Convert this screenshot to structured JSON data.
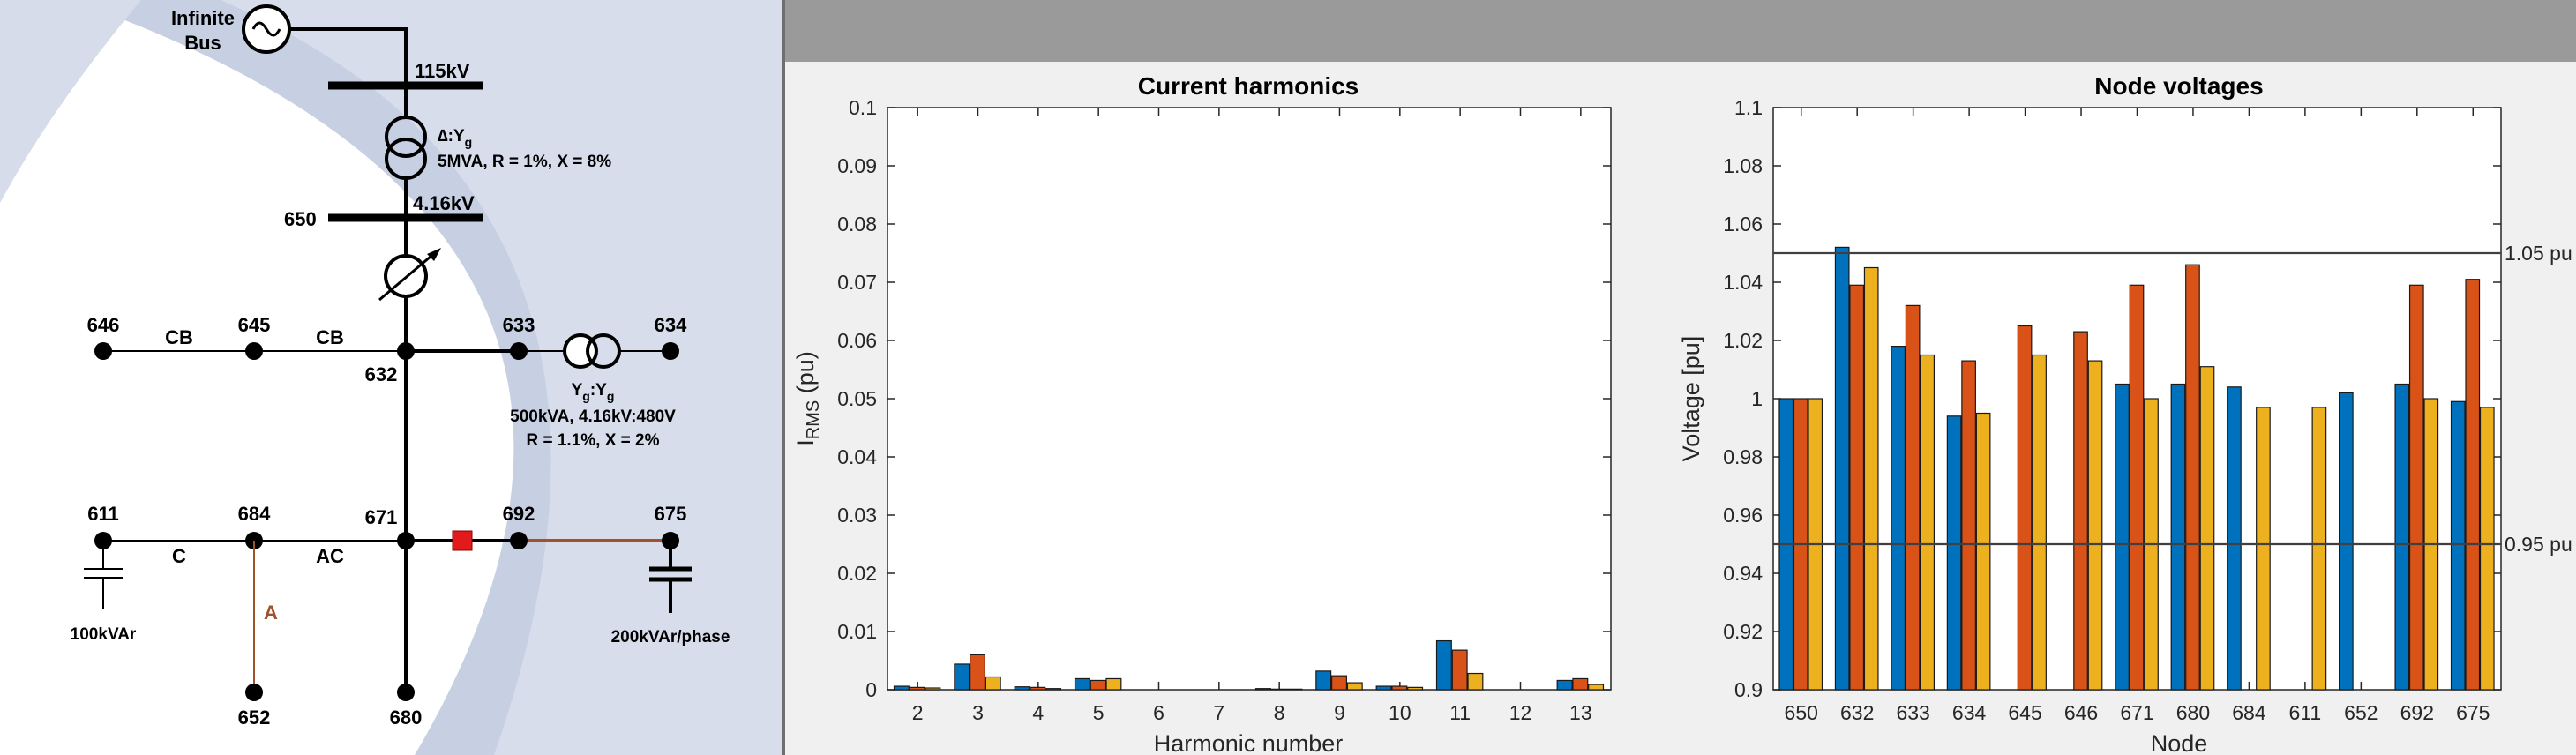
{
  "diagram": {
    "infinite_bus_label_1": "Infinite",
    "infinite_bus_label_2": "Bus",
    "bus_115kv": "115kV",
    "transformer1_conn": "∆:Y",
    "transformer1_sub": "g",
    "transformer1_rating": "5MVA, R = 1%, X = 8%",
    "bus_650": "650",
    "bus_4_16kv": "4.16kV",
    "node_646": "646",
    "node_645": "645",
    "node_632": "632",
    "node_633": "633",
    "node_634": "634",
    "line_cb_1": "CB",
    "line_cb_2": "CB",
    "xfmr2_conn_a": "Y",
    "xfmr2_conn_sub_a": "g",
    "xfmr2_conn_colon": ":Y",
    "xfmr2_conn_sub_b": "g",
    "xfmr2_rating_1": "500kVA, 4.16kV:480V",
    "xfmr2_rating_2": "R = 1.1%, X = 2%",
    "node_611": "611",
    "node_684": "684",
    "node_671": "671",
    "node_692": "692",
    "node_675": "675",
    "line_c": "C",
    "line_ac": "AC",
    "line_a": "A",
    "cap_611": "100kVAr",
    "cap_675": "200kVAr/phase",
    "node_652": "652",
    "node_680": "680",
    "colors": {
      "phase_a_line": "#a0522d",
      "switch": "#e31a1c"
    }
  },
  "chart_data": [
    {
      "type": "bar",
      "title": "Current harmonics",
      "xlabel": "Harmonic number",
      "ylabel_main": "I",
      "ylabel_sub": "RMS",
      "ylabel_unit": " (pu)",
      "ylim": [
        0,
        0.1
      ],
      "yticks": [
        "0",
        "0.01",
        "0.02",
        "0.03",
        "0.04",
        "0.05",
        "0.06",
        "0.07",
        "0.08",
        "0.09",
        "0.1"
      ],
      "categories": [
        "2",
        "3",
        "4",
        "5",
        "6",
        "7",
        "8",
        "9",
        "10",
        "11",
        "12",
        "13"
      ],
      "series": [
        {
          "color": "#0072BD",
          "values": [
            0.0006,
            0.0044,
            0.0005,
            0.0019,
            0,
            0,
            0.0002,
            0.0032,
            0.0006,
            0.0084,
            0,
            0.0016
          ]
        },
        {
          "color": "#D95319",
          "values": [
            0.0004,
            0.006,
            0.0004,
            0.0016,
            0,
            0,
            0.0001,
            0.0024,
            0.0006,
            0.0068,
            0,
            0.0019
          ]
        },
        {
          "color": "#EDB120",
          "values": [
            0.0003,
            0.0022,
            0.0002,
            0.0019,
            0,
            0,
            0.0001,
            0.0012,
            0.0004,
            0.0028,
            0,
            0.0009
          ]
        }
      ],
      "grid": false
    },
    {
      "type": "bar",
      "title": "Node voltages",
      "xlabel": "Node",
      "ylabel": "Voltage [pu]",
      "ylim": [
        0.9,
        1.1
      ],
      "yticks": [
        "0.9",
        "0.92",
        "0.94",
        "0.96",
        "0.98",
        "1",
        "1.02",
        "1.04",
        "1.06",
        "1.08",
        "1.1"
      ],
      "categories": [
        "650",
        "632",
        "633",
        "634",
        "645",
        "646",
        "671",
        "680",
        "684",
        "611",
        "652",
        "692",
        "675"
      ],
      "series": [
        {
          "color": "#0072BD",
          "values": [
            1.0,
            1.052,
            1.018,
            0.994,
            null,
            null,
            1.005,
            1.005,
            1.004,
            null,
            1.002,
            1.005,
            0.999
          ]
        },
        {
          "color": "#D95319",
          "values": [
            1.0,
            1.039,
            1.032,
            1.013,
            1.025,
            1.023,
            1.039,
            1.046,
            null,
            null,
            null,
            1.039,
            1.041
          ]
        },
        {
          "color": "#EDB120",
          "values": [
            1.0,
            1.045,
            1.015,
            0.995,
            1.015,
            1.013,
            1.0,
            1.011,
            0.997,
            0.997,
            null,
            1.0,
            0.997
          ]
        }
      ],
      "reference_lines": [
        {
          "value": 1.05,
          "label": "1.05 pu"
        },
        {
          "value": 0.95,
          "label": "0.95 pu"
        }
      ],
      "grid": false
    }
  ]
}
